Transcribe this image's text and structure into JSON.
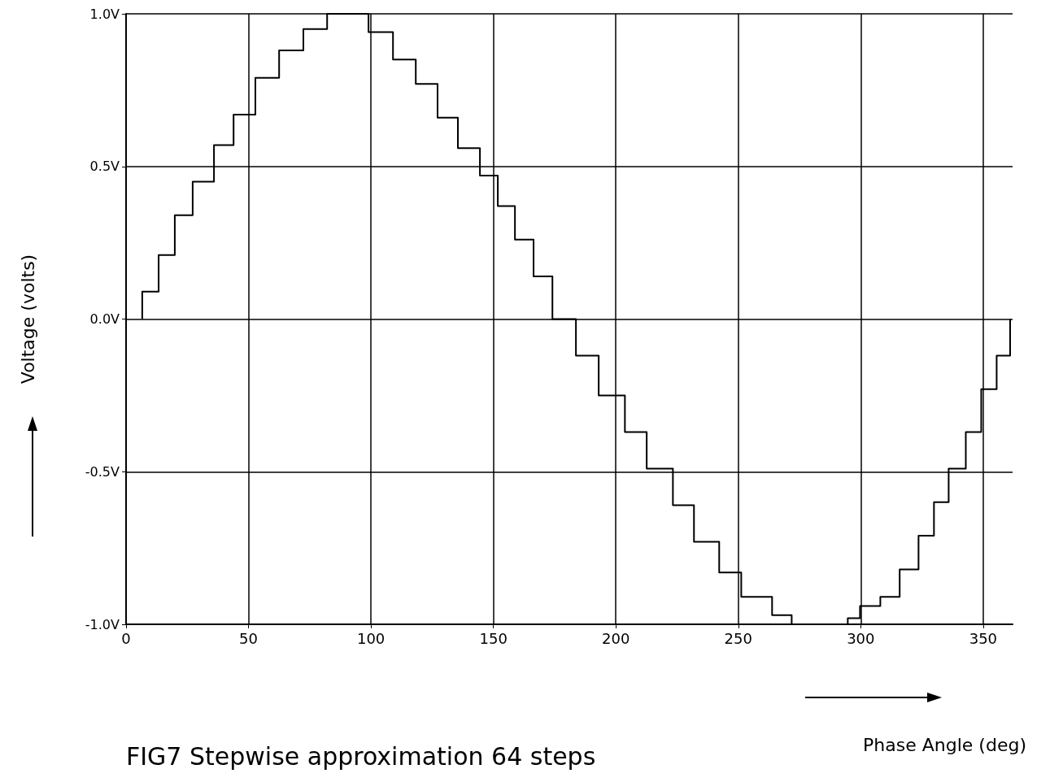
{
  "chart_data": {
    "type": "step",
    "title": "FIG7 Stepwise approximation 64 steps",
    "xlabel": "Phase Angle (deg)",
    "ylabel": "Voltage (volts)",
    "x": [
      6.6,
      6.6,
      13.3,
      19.9,
      27.2,
      35.9,
      43.9,
      52.8,
      62.5,
      72.4,
      82.1,
      99.0,
      109.0,
      118.3,
      127.2,
      135.5,
      144.5,
      151.8,
      158.8,
      166.4,
      174.1,
      183.7,
      193.0,
      203.7,
      212.6,
      223.3,
      231.9,
      242.2,
      251.2,
      263.8,
      271.8,
      294.7,
      299.7,
      308.0,
      315.9,
      323.6,
      329.9,
      335.9,
      342.9,
      349.2,
      355.5,
      361.0
    ],
    "series": [
      {
        "color": "#000000",
        "values": [
          0,
          0.09,
          0.21,
          0.34,
          0.45,
          0.57,
          0.67,
          0.79,
          0.88,
          0.95,
          1.0,
          0.94,
          0.85,
          0.77,
          0.66,
          0.56,
          0.47,
          0.37,
          0.26,
          0.14,
          0.0,
          -0.12,
          -0.25,
          -0.37,
          -0.49,
          -0.61,
          -0.73,
          -0.83,
          -0.91,
          -0.97,
          -1.0,
          -0.98,
          -0.94,
          -0.91,
          -0.82,
          -0.71,
          -0.6,
          -0.49,
          -0.37,
          -0.23,
          -0.12,
          0.0
        ]
      }
    ],
    "xlim": [
      0,
      362
    ],
    "xticks": [
      0,
      50,
      100,
      150,
      200,
      250,
      300,
      350
    ],
    "ylim": [
      -1,
      1
    ],
    "yticks": [
      {
        "value": -1,
        "label": "-1.0V"
      },
      {
        "value": -0.5,
        "label": "-0.5V"
      },
      {
        "value": 0,
        "label": "0.0V"
      },
      {
        "value": 0.5,
        "label": "0.5V"
      },
      {
        "value": 1,
        "label": "1.0V"
      }
    ],
    "grid": true,
    "marker": "none",
    "line_style": "solid"
  }
}
